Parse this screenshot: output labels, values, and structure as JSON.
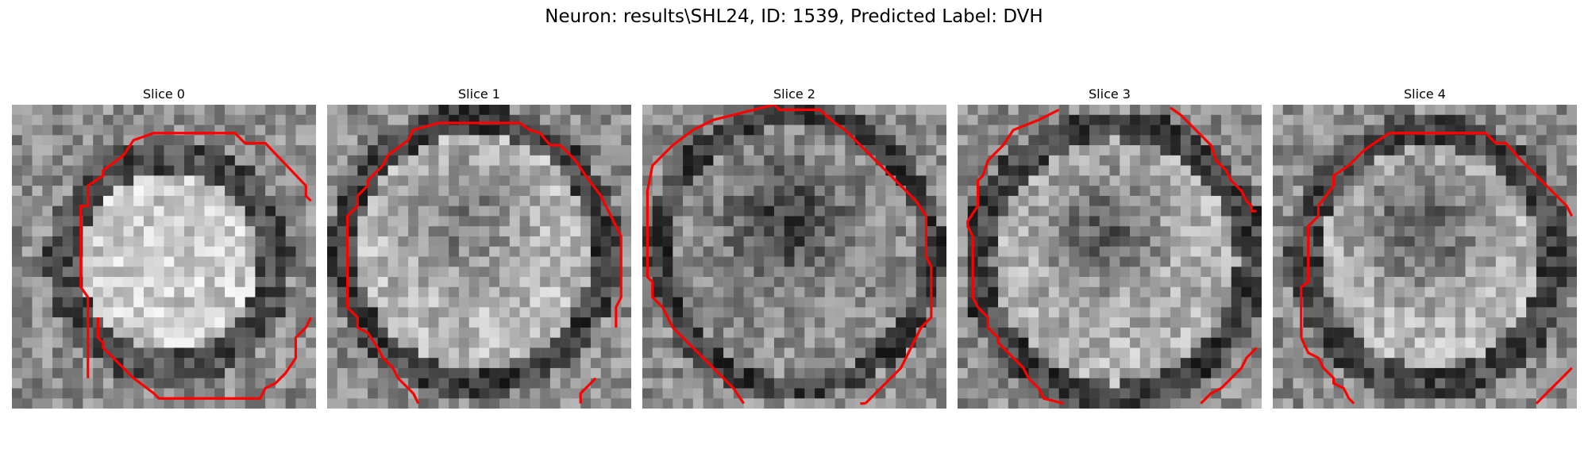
{
  "figure": {
    "title": "Neuron: results\\SHL24, ID: 1539, Predicted Label: DVH"
  },
  "panels": [
    {
      "title": "Slice 0",
      "contour_color": "#ff0000"
    },
    {
      "title": "Slice 1",
      "contour_color": "#ff0000"
    },
    {
      "title": "Slice 2",
      "contour_color": "#ff0000"
    },
    {
      "title": "Slice 3",
      "contour_color": "#ff0000"
    },
    {
      "title": "Slice 4",
      "contour_color": "#ff0000"
    }
  ]
}
